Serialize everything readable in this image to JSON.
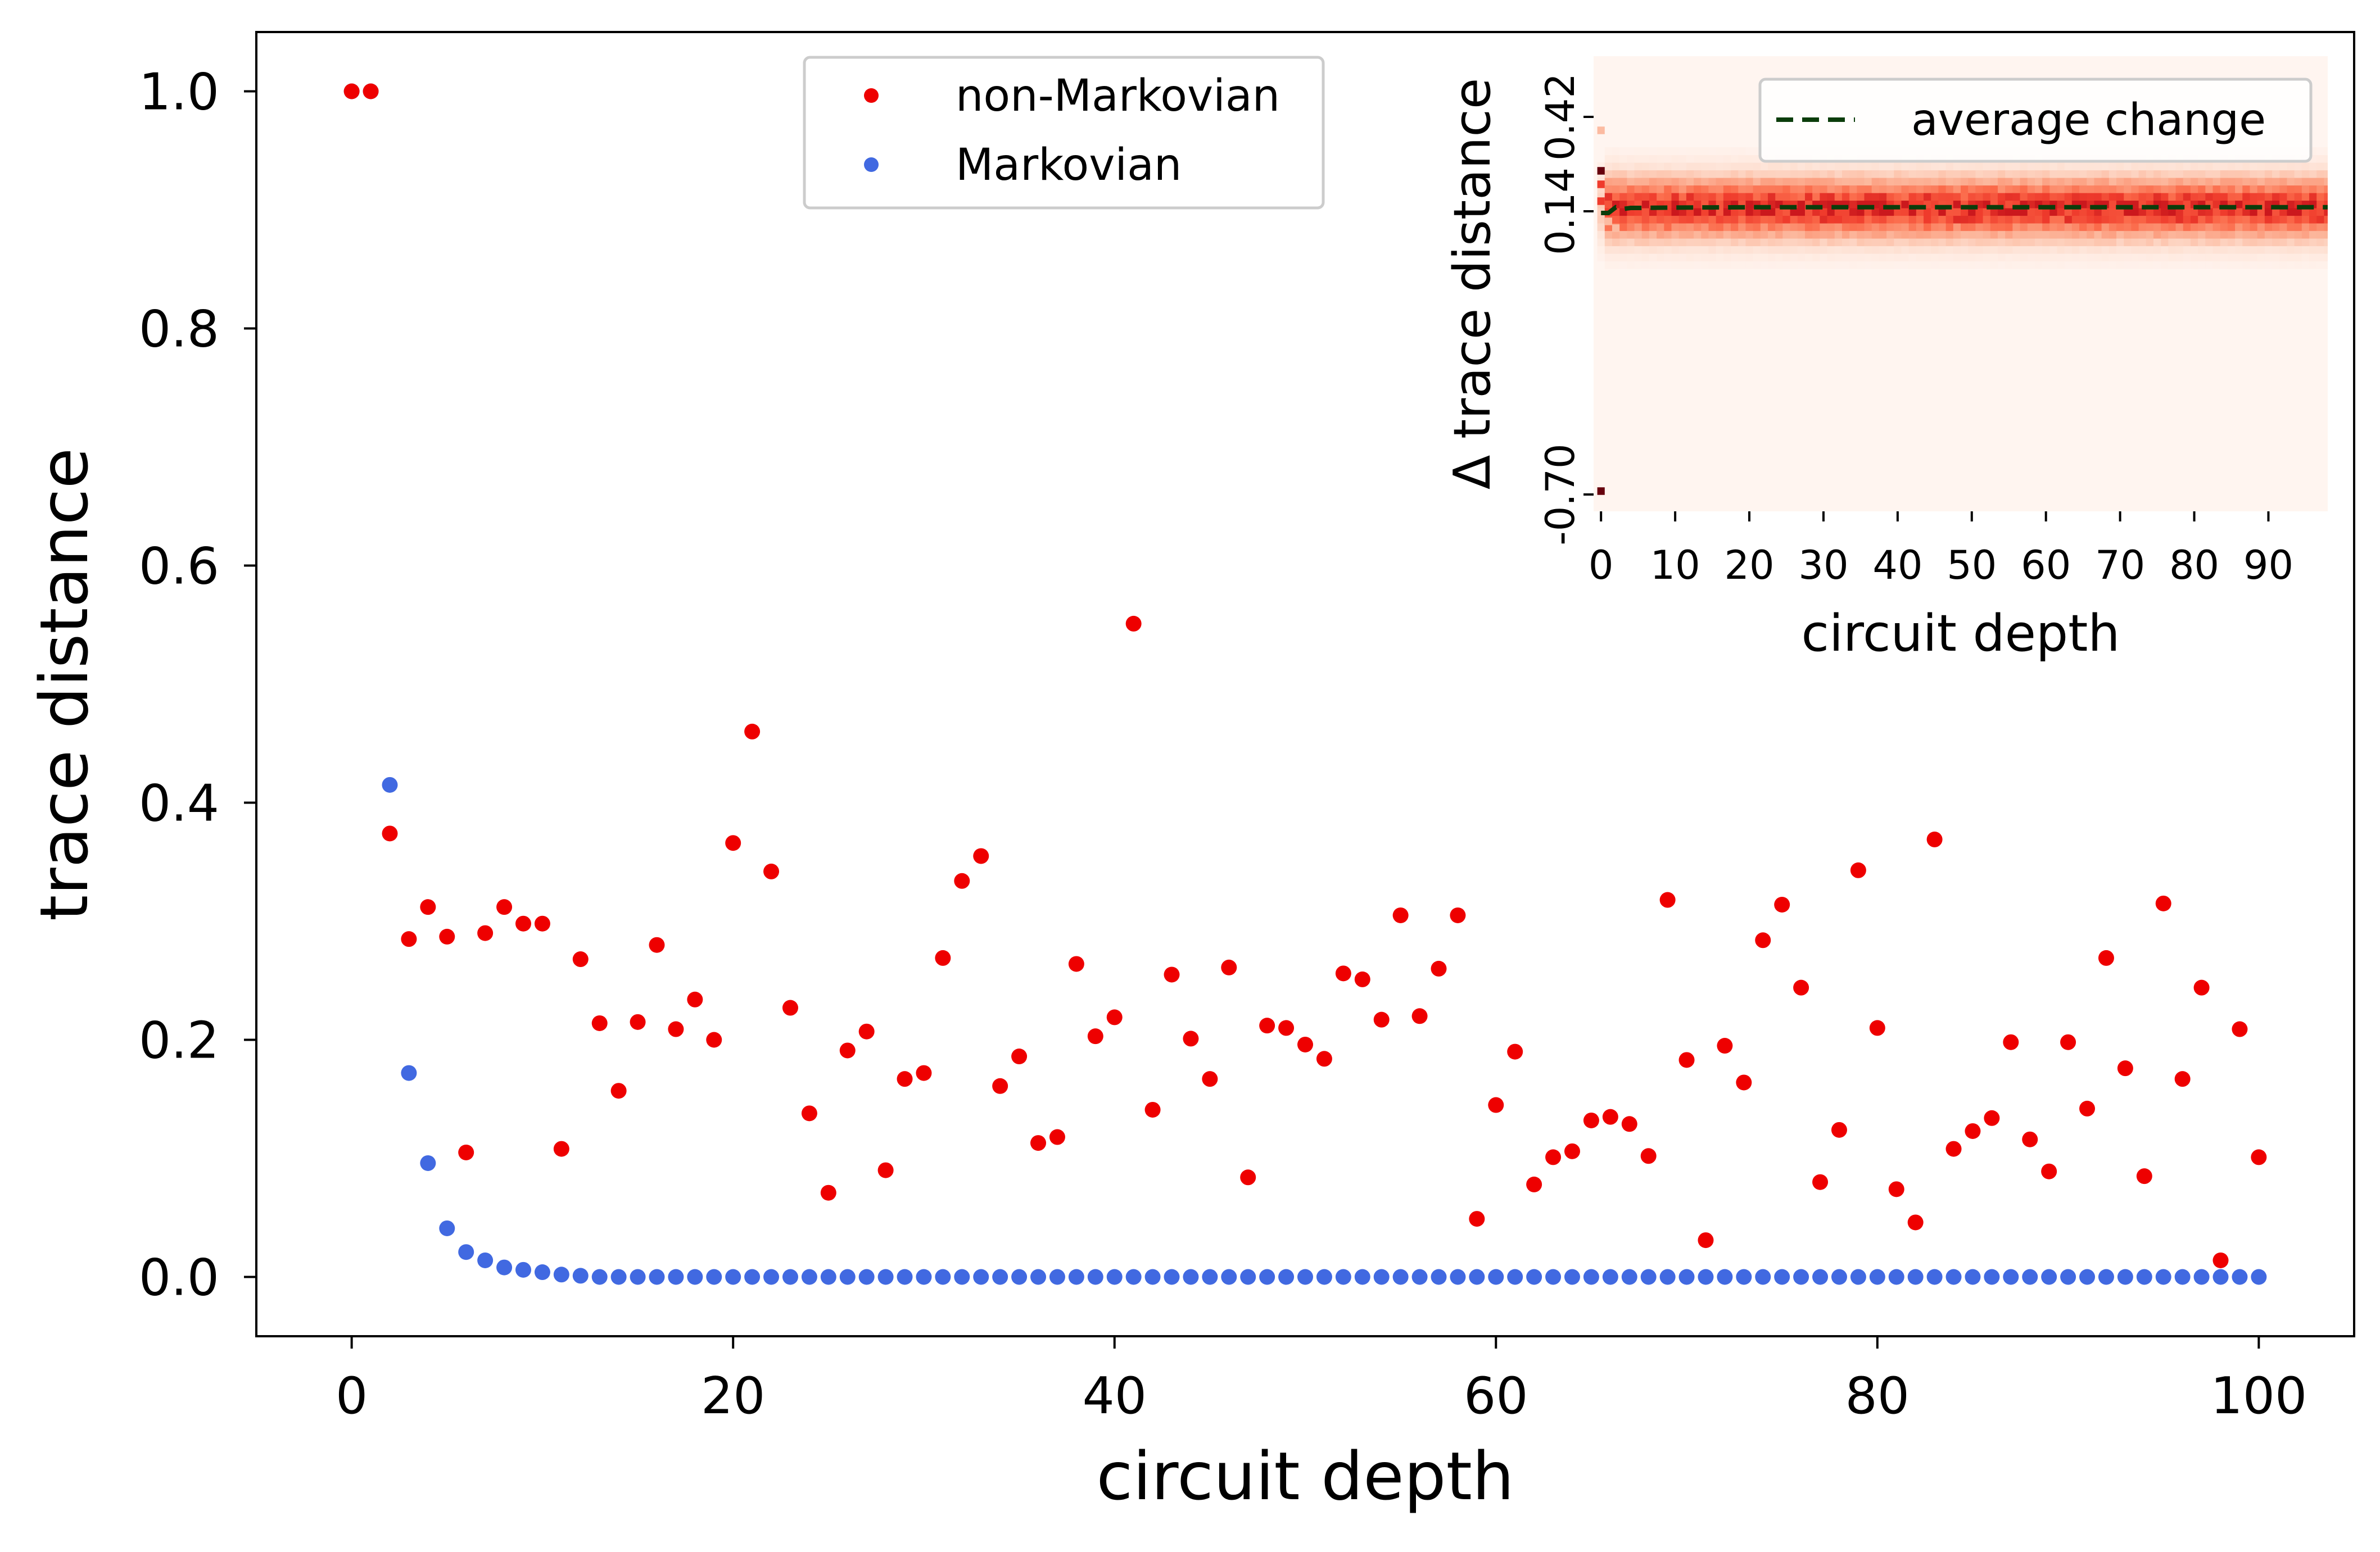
{
  "colors": {
    "non_markovian": "#ee0000",
    "markovian": "#4169e1",
    "average_line": "#0b3d0b",
    "heat_low": "#fff5f0",
    "heat_mid": "#fcbba1",
    "heat_high": "#ef3b2c",
    "heat_peak": "#67000d"
  },
  "chart_data": [
    {
      "type": "scatter",
      "title": "",
      "xlabel": "circuit depth",
      "ylabel": "trace distance",
      "xlim": [
        -5,
        105
      ],
      "ylim": [
        -0.05,
        1.05
      ],
      "xticks": [
        0,
        20,
        40,
        60,
        80,
        100
      ],
      "xtick_labels": [
        "0",
        "20",
        "40",
        "60",
        "80",
        "100"
      ],
      "yticks": [
        0.0,
        0.2,
        0.4,
        0.6,
        0.8,
        1.0
      ],
      "ytick_labels": [
        "0.0",
        "0.2",
        "0.4",
        "0.6",
        "0.8",
        "1.0"
      ],
      "grid": false,
      "legend_position": "top-center",
      "series": [
        {
          "name": "non-Markovian",
          "color": "#ee0000",
          "x": [
            0,
            1,
            2,
            3,
            4,
            5,
            6,
            7,
            8,
            9,
            10,
            11,
            12,
            13,
            14,
            15,
            16,
            17,
            18,
            19,
            20,
            21,
            22,
            23,
            24,
            25,
            26,
            27,
            28,
            29,
            30,
            31,
            32,
            33,
            34,
            35,
            36,
            37,
            38,
            39,
            40,
            41,
            42,
            43,
            44,
            45,
            46,
            47,
            48,
            49,
            50,
            51,
            52,
            53,
            54,
            55,
            56,
            57,
            58,
            59,
            60,
            61,
            62,
            63,
            64,
            65,
            66,
            67,
            68,
            69,
            70,
            71,
            72,
            73,
            74,
            75,
            76,
            77,
            78,
            79,
            80,
            81,
            82,
            83,
            84,
            85,
            86,
            87,
            88,
            89,
            90,
            91,
            92,
            93,
            94,
            95,
            96,
            97,
            98,
            99,
            100
          ],
          "y": [
            1.0,
            1.0,
            0.374,
            0.285,
            0.312,
            0.287,
            0.105,
            0.29,
            0.312,
            0.298,
            0.298,
            0.108,
            0.268,
            0.214,
            0.157,
            0.215,
            0.28,
            0.209,
            0.234,
            0.2,
            0.366,
            0.46,
            0.342,
            0.227,
            0.138,
            0.071,
            0.191,
            0.207,
            0.09,
            0.167,
            0.172,
            0.269,
            0.334,
            0.355,
            0.161,
            0.186,
            0.113,
            0.118,
            0.264,
            0.203,
            0.219,
            0.551,
            0.141,
            0.255,
            0.201,
            0.167,
            0.261,
            0.084,
            0.212,
            0.21,
            0.196,
            0.184,
            0.256,
            0.251,
            0.217,
            0.305,
            0.22,
            0.26,
            0.305,
            0.049,
            0.145,
            0.19,
            0.078,
            0.101,
            0.106,
            0.132,
            0.135,
            0.129,
            0.102,
            0.318,
            0.183,
            0.031,
            0.195,
            0.164,
            0.284,
            0.314,
            0.244,
            0.08,
            0.124,
            0.343,
            0.21,
            0.074,
            0.046,
            0.369,
            0.108,
            0.123,
            0.134,
            0.198,
            0.116,
            0.089,
            0.198,
            0.142,
            0.269,
            0.176,
            0.085,
            0.315,
            0.167,
            0.244,
            0.014,
            0.209,
            0.101
          ]
        },
        {
          "name": "Markovian",
          "color": "#4169e1",
          "x": [
            0,
            1,
            2,
            3,
            4,
            5,
            6,
            7,
            8,
            9,
            10,
            11,
            12,
            13,
            14,
            15,
            16,
            17,
            18,
            19,
            20,
            21,
            22,
            23,
            24,
            25,
            26,
            27,
            28,
            29,
            30,
            31,
            32,
            33,
            34,
            35,
            36,
            37,
            38,
            39,
            40,
            41,
            42,
            43,
            44,
            45,
            46,
            47,
            48,
            49,
            50,
            51,
            52,
            53,
            54,
            55,
            56,
            57,
            58,
            59,
            60,
            61,
            62,
            63,
            64,
            65,
            66,
            67,
            68,
            69,
            70,
            71,
            72,
            73,
            74,
            75,
            76,
            77,
            78,
            79,
            80,
            81,
            82,
            83,
            84,
            85,
            86,
            87,
            88,
            89,
            90,
            91,
            92,
            93,
            94,
            95,
            96,
            97,
            98,
            99,
            100
          ],
          "y": [
            1.0,
            1.0,
            0.415,
            0.172,
            0.096,
            0.041,
            0.021,
            0.014,
            0.008,
            0.006,
            0.004,
            0.002,
            0.001,
            0,
            0,
            0,
            0,
            0,
            0,
            0,
            0,
            0,
            0,
            0,
            0,
            0,
            0,
            0,
            0,
            0,
            0,
            0,
            0,
            0,
            0,
            0,
            0,
            0,
            0,
            0,
            0,
            0,
            0,
            0,
            0,
            0,
            0,
            0,
            0,
            0,
            0,
            0,
            0,
            0,
            0,
            0,
            0,
            0,
            0,
            0,
            0,
            0,
            0,
            0,
            0,
            0,
            0,
            0,
            0,
            0,
            0,
            0,
            0,
            0,
            0,
            0,
            0,
            0,
            0,
            0,
            0,
            0,
            0,
            0,
            0,
            0,
            0,
            0,
            0,
            0,
            0,
            0,
            0,
            0,
            0,
            0,
            0,
            0,
            0,
            0,
            0
          ]
        }
      ]
    },
    {
      "type": "heatmap",
      "title": "",
      "xlabel": "circuit depth",
      "ylabel": "Δ trace distance",
      "xlim": [
        -1,
        98
      ],
      "xticks": [
        0,
        10,
        20,
        30,
        40,
        50,
        60,
        70,
        80,
        90
      ],
      "xtick_labels": [
        "0",
        "10",
        "20",
        "30",
        "40",
        "50",
        "60",
        "70",
        "80",
        "90"
      ],
      "ylim": [
        -0.75,
        0.6
      ],
      "yticks": [
        0.42,
        0.14,
        -0.7
      ],
      "ytick_labels": [
        "0.42",
        "0.14",
        "-0.70"
      ],
      "colormap": "Reds",
      "band_center": 0.15,
      "band_core_halfwidth": 0.05,
      "band_outer_halfwidth": 0.12,
      "column_start": 0,
      "column_end": 98,
      "legend_position": "top-right",
      "series": [
        {
          "name": "average change",
          "style": "dashed",
          "x": [
            0,
            1,
            2,
            3,
            4,
            5,
            10,
            20,
            30,
            40,
            50,
            60,
            70,
            80,
            90,
            98
          ],
          "y": [
            0.135,
            0.135,
            0.152,
            0.147,
            0.15,
            0.15,
            0.151,
            0.152,
            0.152,
            0.152,
            0.152,
            0.152,
            0.152,
            0.152,
            0.152,
            0.152
          ]
        }
      ],
      "outliers": [
        {
          "x": 0,
          "y": 0.38,
          "level": "mid"
        },
        {
          "x": 0,
          "y": 0.26,
          "level": "peak"
        },
        {
          "x": 0,
          "y": 0.22,
          "level": "high"
        },
        {
          "x": 0,
          "y": 0.17,
          "level": "high"
        },
        {
          "x": 0,
          "y": -0.69,
          "level": "peak"
        },
        {
          "x": 1,
          "y": 0.11,
          "level": "mid"
        },
        {
          "x": 2,
          "y": 0.09,
          "level": "mid"
        }
      ]
    }
  ]
}
